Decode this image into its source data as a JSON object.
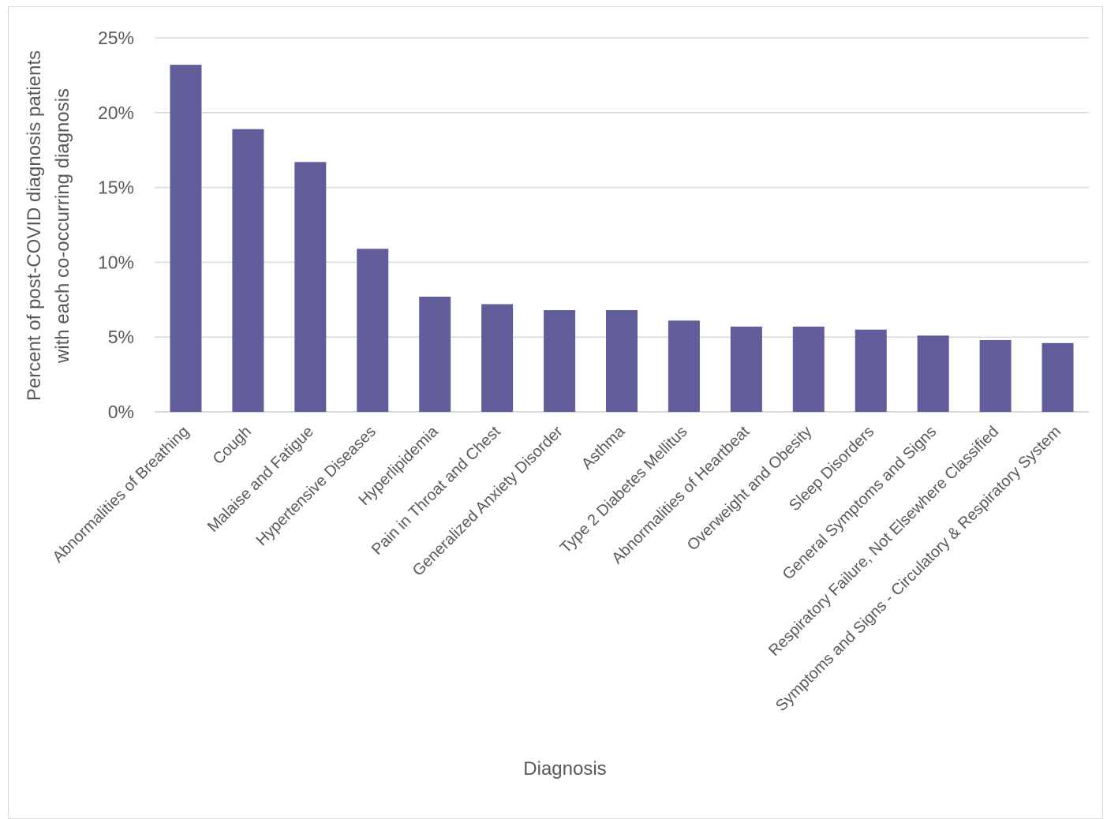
{
  "chart_data": {
    "type": "bar",
    "categories": [
      "Abnormalities of Breathing",
      "Cough",
      "Malaise and Fatigue",
      "Hypertensive Diseases",
      "Hyperlipidemia",
      "Pain in Throat and Chest",
      "Generalized Anxiety Disorder",
      "Asthma",
      "Type 2 Diabetes Mellitus",
      "Abnormalities of Heartbeat",
      "Overweight and Obesity",
      "Sleep Disorders",
      "General Symptoms and Signs",
      "Respiratory Failure, Not Elsewhere Classified",
      "Symptoms and Signs - Circulatory & Respiratory System"
    ],
    "values": [
      23.2,
      18.9,
      16.7,
      10.9,
      7.7,
      7.2,
      6.8,
      6.8,
      6.1,
      5.7,
      5.7,
      5.5,
      5.1,
      4.8,
      4.6
    ],
    "ylim": [
      0,
      25
    ],
    "yticks": [
      0,
      5,
      10,
      15,
      20,
      25
    ],
    "ytick_labels": [
      "0%",
      "5%",
      "10%",
      "15%",
      "20%",
      "25%"
    ],
    "xlabel": "Diagnosis",
    "ylabel_lines": [
      "Percent of post-COVID diagnosis patients",
      "with each co-occurring diagnosis"
    ],
    "grid": true,
    "legend": "none",
    "colors": {
      "bar": "#615d9a",
      "grid": "#d9d9d9",
      "text": "#595959"
    }
  }
}
